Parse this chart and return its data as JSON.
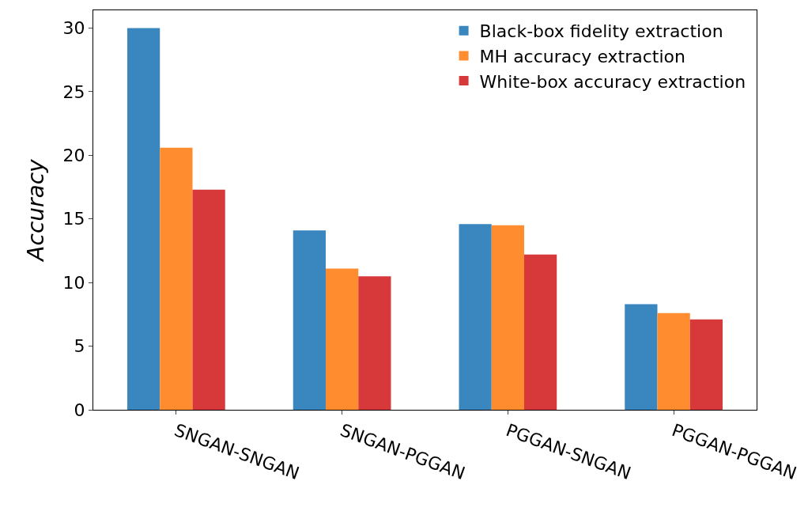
{
  "chart_data": {
    "type": "bar",
    "ylabel": "Accuracy",
    "categories": [
      "SNGAN-SNGAN",
      "SNGAN-PGGAN",
      "PGGAN-SNGAN",
      "PGGAN-PGGAN"
    ],
    "series": [
      {
        "name": "Black-box fidelity extraction",
        "color": "#3a87c0",
        "values": [
          30.0,
          14.1,
          14.6,
          8.3
        ]
      },
      {
        "name": "MH accuracy extraction",
        "color": "#ff8c2e",
        "values": [
          20.6,
          11.1,
          14.5,
          7.6
        ]
      },
      {
        "name": "White-box accuracy extraction",
        "color": "#d7393b",
        "values": [
          17.3,
          10.5,
          12.2,
          7.1
        ]
      }
    ],
    "ylim": [
      0,
      31.4
    ],
    "yticks": [
      0,
      5,
      10,
      15,
      20,
      25,
      30
    ],
    "legend": "top right"
  }
}
